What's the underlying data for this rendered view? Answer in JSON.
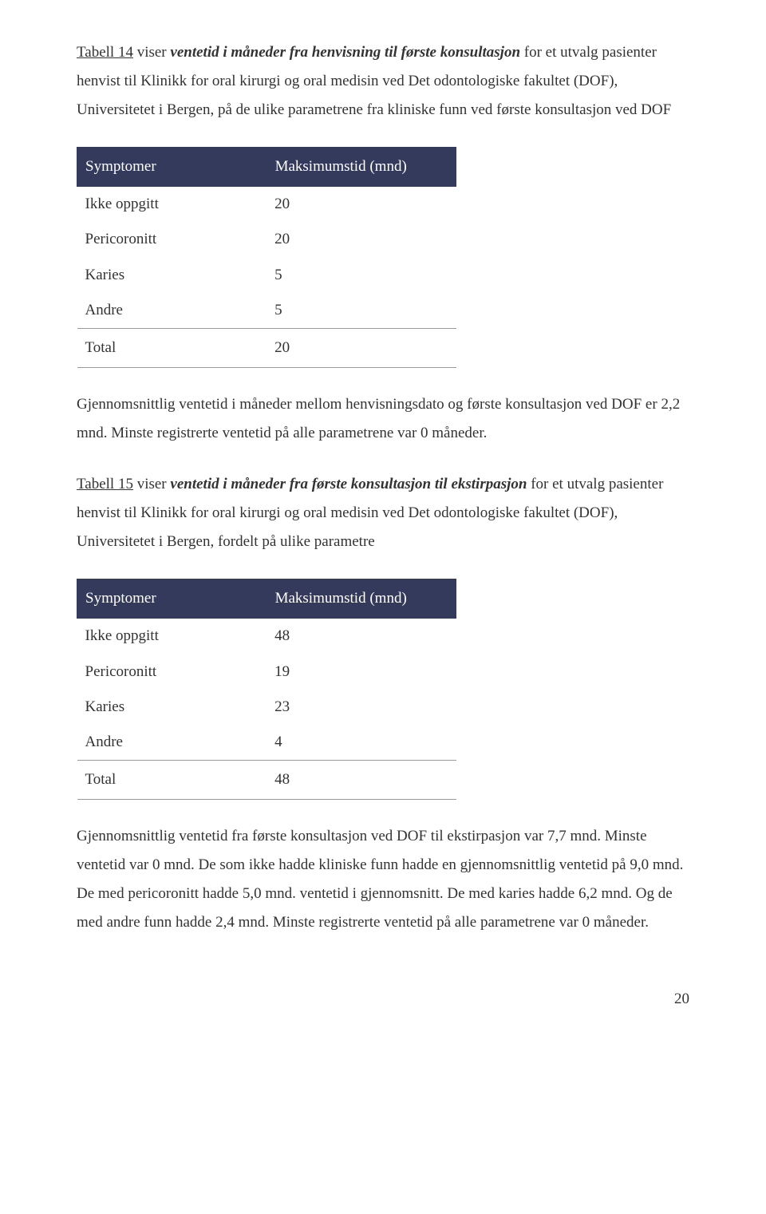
{
  "p1": {
    "t14_label": "Tabell 14",
    "t14_rest1": " viser ",
    "t14_phrase": "ventetid i måneder fra henvisning til første konsultasjon",
    "t14_rest2": " for et utvalg pasienter henvist til Klinikk for oral kirurgi og oral medisin ved Det odontologiske fakultet (DOF), Universitetet i Bergen, på de ulike parametrene fra kliniske funn ved første konsultasjon ved DOF"
  },
  "table1": {
    "h1": "Symptomer",
    "h2": "Maksimumstid (mnd)",
    "rows": [
      {
        "c1": "Ikke oppgitt",
        "c2": "20"
      },
      {
        "c1": "Pericoronitt",
        "c2": "20"
      },
      {
        "c1": "Karies",
        "c2": "5"
      },
      {
        "c1": "Andre",
        "c2": "5"
      }
    ],
    "total": {
      "c1": "Total",
      "c2": "20"
    }
  },
  "p2": "Gjennomsnittlig ventetid i måneder mellom henvisningsdato og første konsultasjon ved DOF er 2,2 mnd. Minste registrerte ventetid på alle parametrene var 0 måneder.",
  "p3": {
    "t15_label": "Tabell 15",
    "t15_rest1": " viser ",
    "t15_phrase": "ventetid i måneder fra første konsultasjon til ekstirpasjon",
    "t15_rest2": " for et utvalg pasienter henvist til Klinikk for oral kirurgi og oral medisin ved Det odontologiske fakultet (DOF), Universitetet i Bergen, fordelt på ulike parametre"
  },
  "table2": {
    "h1": "Symptomer",
    "h2": "Maksimumstid (mnd)",
    "rows": [
      {
        "c1": "Ikke oppgitt",
        "c2": "48"
      },
      {
        "c1": "Pericoronitt",
        "c2": "19"
      },
      {
        "c1": "Karies",
        "c2": "23"
      },
      {
        "c1": "Andre",
        "c2": "4"
      }
    ],
    "total": {
      "c1": "Total",
      "c2": "48"
    }
  },
  "p4": "Gjennomsnittlig ventetid fra første konsultasjon ved DOF til ekstirpasjon var 7,7 mnd. Minste ventetid var 0 mnd. De som ikke hadde kliniske funn hadde en gjennomsnittlig ventetid på 9,0 mnd. De med pericoronitt hadde 5,0 mnd. ventetid i gjennomsnitt. De med karies hadde 6,2 mnd. Og de med andre funn hadde 2,4 mnd. Minste registrerte ventetid på alle parametrene var 0 måneder.",
  "page_number": "20",
  "colors": {
    "header_bg": "#333a5c",
    "header_fg": "#ffffff",
    "text": "#333333",
    "rule": "#999999"
  }
}
